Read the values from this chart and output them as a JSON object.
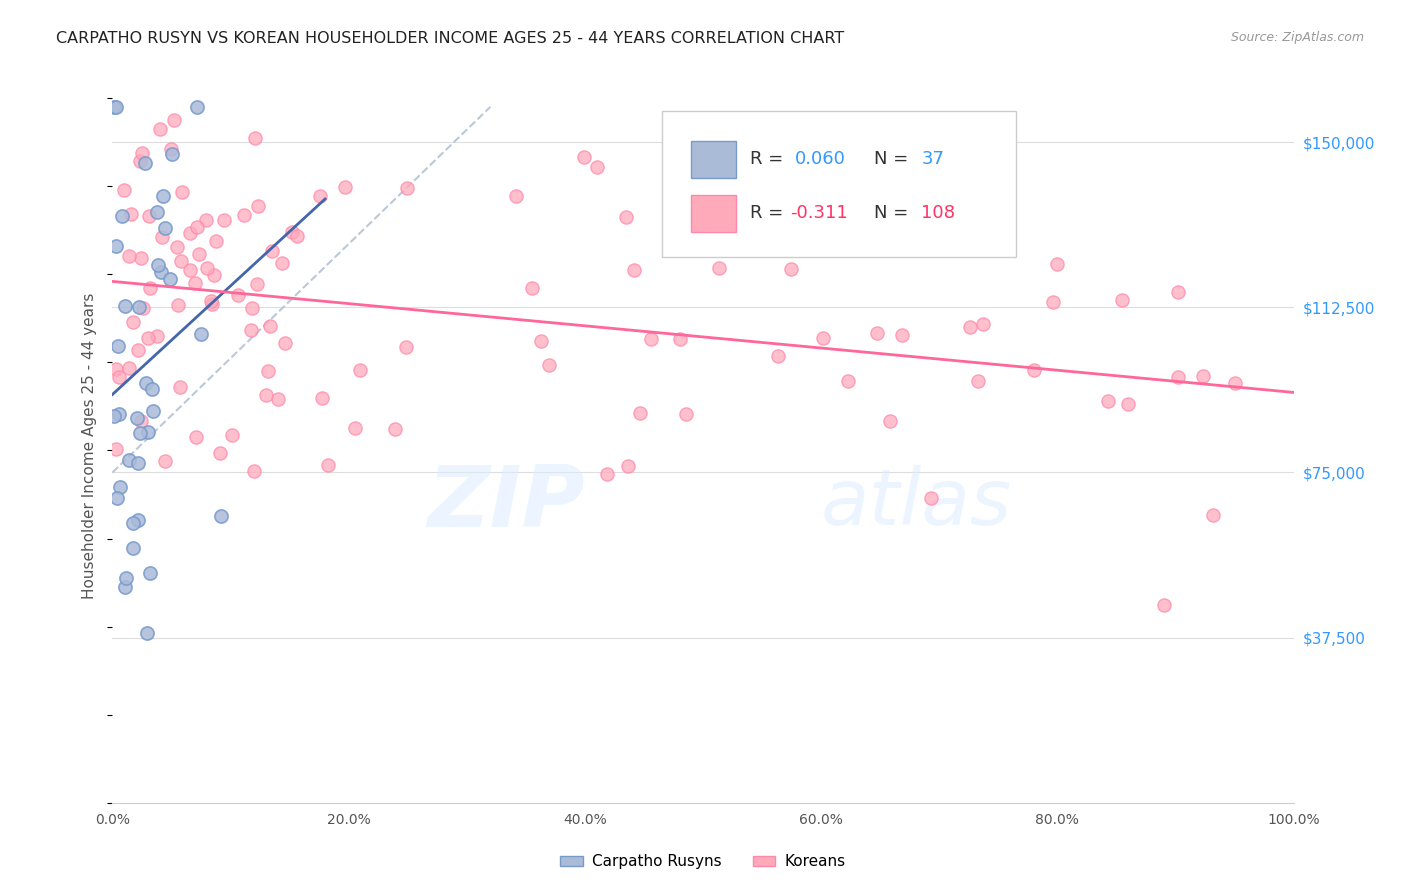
{
  "title": "CARPATHO RUSYN VS KOREAN HOUSEHOLDER INCOME AGES 25 - 44 YEARS CORRELATION CHART",
  "source": "Source: ZipAtlas.com",
  "ylabel": "Householder Income Ages 25 - 44 years",
  "y_ticks": [
    37500,
    75000,
    112500,
    150000
  ],
  "y_tick_labels": [
    "$37,500",
    "$75,000",
    "$112,500",
    "$150,000"
  ],
  "legend_label1": "Carpatho Rusyns",
  "legend_label2": "Koreans",
  "R1": 0.06,
  "N1": 37,
  "R2": -0.311,
  "N2": 108,
  "color_blue_fill": "#AABBD8",
  "color_blue_edge": "#7799CC",
  "color_blue_line": "#4466AA",
  "color_pink_fill": "#FFAABB",
  "color_pink_edge": "#FF88AA",
  "color_pink_line": "#FF6699",
  "color_r_blue": "#3399FF",
  "color_r_pink": "#FF3366",
  "grid_color": "#DDDDDD",
  "background": "#FFFFFF",
  "xlim": [
    0,
    1.0
  ],
  "ylim": [
    0,
    162000
  ],
  "x_ticks": [
    0.0,
    0.2,
    0.4,
    0.6,
    0.8,
    1.0
  ],
  "x_tick_labels": [
    "0.0%",
    "20.0%",
    "40.0%",
    "60.0%",
    "80.0%",
    "100.0%"
  ]
}
